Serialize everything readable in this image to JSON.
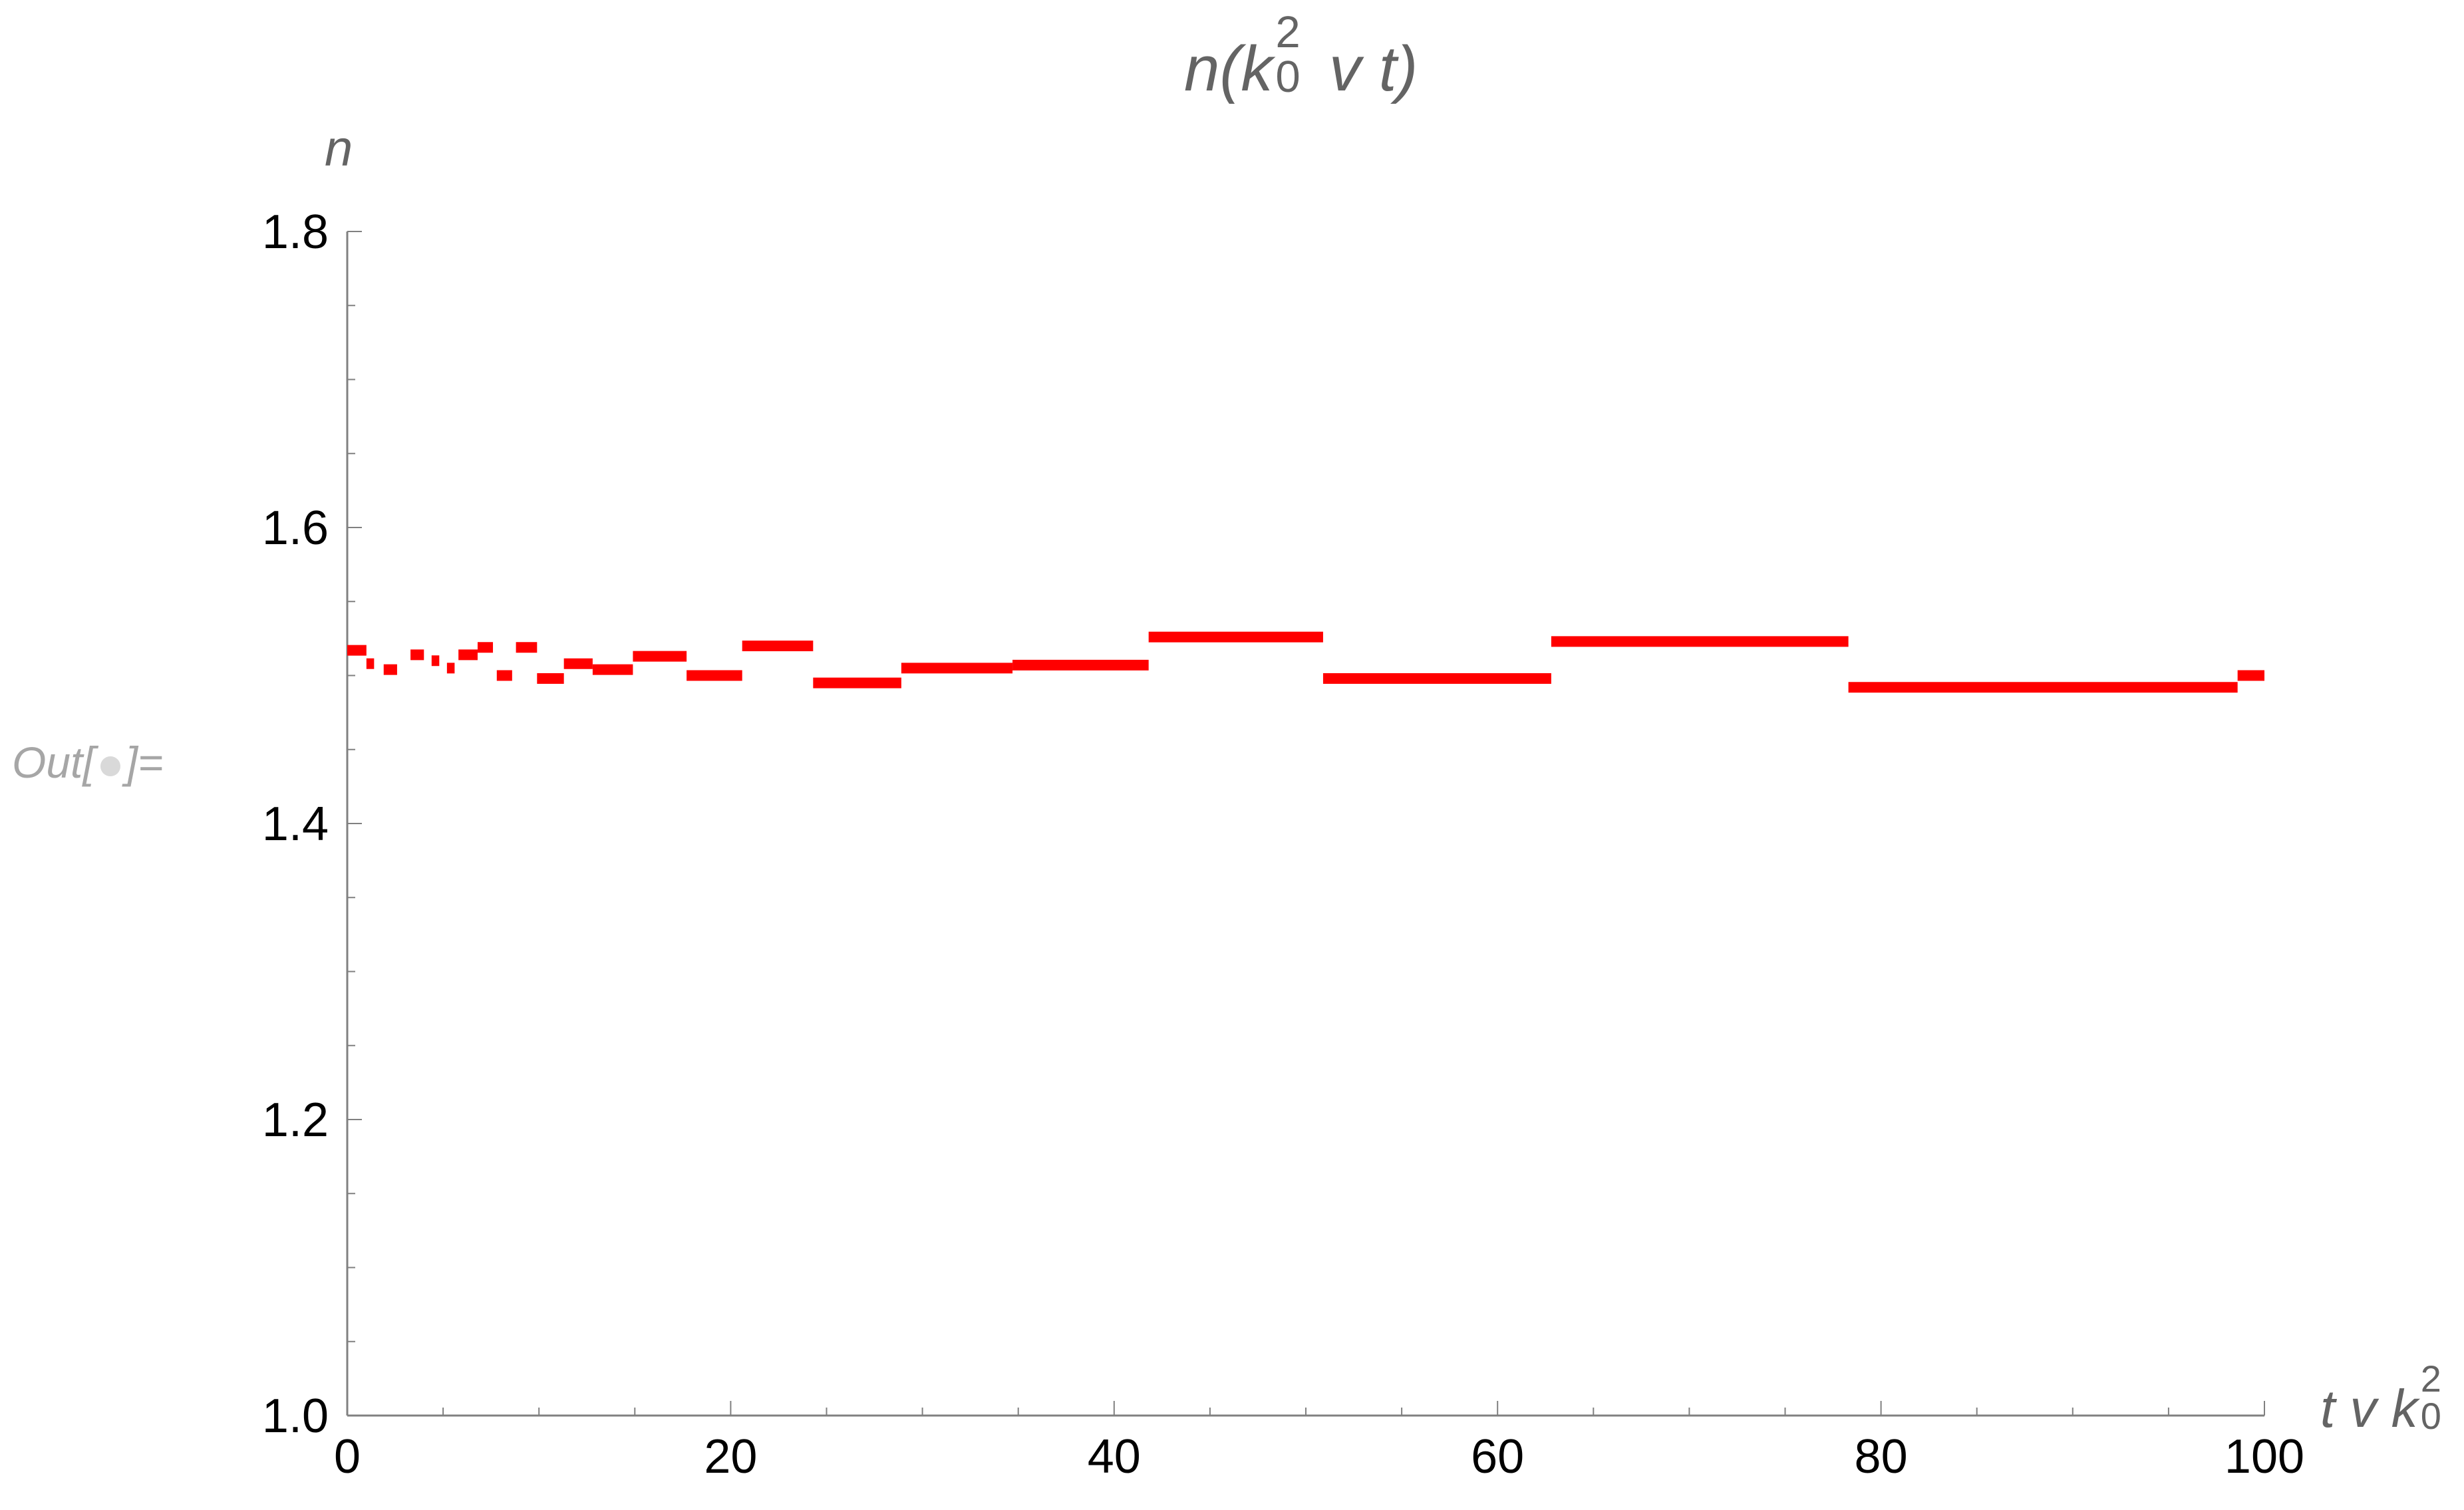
{
  "output_label": {
    "text": "Out[",
    "text_end": "]="
  },
  "title_parts": {
    "pre": "n(k",
    "sup": "2",
    "sub": "0",
    "post": " v t)"
  },
  "ylabel": "n",
  "xlabel_parts": {
    "pre": "t v k",
    "sup": "2",
    "sub": "0"
  },
  "colors": {
    "series": "#ff0000",
    "axis": "#808080",
    "text": "#000000",
    "label": "#646464"
  },
  "chart_data": {
    "type": "scatter",
    "title": "n(k0^2 v t)",
    "xlabel": "t v k0^2",
    "ylabel": "n",
    "xlim": [
      0,
      100
    ],
    "ylim": [
      1.0,
      1.8
    ],
    "x_ticks": [
      0,
      20,
      40,
      60,
      80,
      100
    ],
    "y_ticks": [
      1.0,
      1.2,
      1.4,
      1.6,
      1.8
    ],
    "x_tick_labels": [
      "0",
      "20",
      "40",
      "60",
      "80",
      "100"
    ],
    "y_tick_labels": [
      "1.0",
      "1.2",
      "1.4",
      "1.6",
      "1.8"
    ],
    "grid": false,
    "series": [
      {
        "style": "step-segments",
        "segments": [
          {
            "x0": 0.0,
            "x1": 1.0,
            "y": 1.517
          },
          {
            "x0": 1.0,
            "x1": 1.4,
            "y": 1.508
          },
          {
            "x0": 1.9,
            "x1": 2.6,
            "y": 1.504
          },
          {
            "x0": 3.3,
            "x1": 4.0,
            "y": 1.514
          },
          {
            "x0": 4.4,
            "x1": 4.8,
            "y": 1.51
          },
          {
            "x0": 5.2,
            "x1": 5.6,
            "y": 1.505
          },
          {
            "x0": 5.8,
            "x1": 6.8,
            "y": 1.514
          },
          {
            "x0": 6.8,
            "x1": 7.6,
            "y": 1.519
          },
          {
            "x0": 7.8,
            "x1": 8.6,
            "y": 1.5
          },
          {
            "x0": 8.8,
            "x1": 9.9,
            "y": 1.519
          },
          {
            "x0": 9.9,
            "x1": 11.3,
            "y": 1.498
          },
          {
            "x0": 11.3,
            "x1": 12.8,
            "y": 1.508
          },
          {
            "x0": 12.8,
            "x1": 14.9,
            "y": 1.504
          },
          {
            "x0": 14.9,
            "x1": 17.7,
            "y": 1.513
          },
          {
            "x0": 17.7,
            "x1": 20.6,
            "y": 1.5
          },
          {
            "x0": 20.6,
            "x1": 24.3,
            "y": 1.52
          },
          {
            "x0": 24.3,
            "x1": 28.9,
            "y": 1.495
          },
          {
            "x0": 28.9,
            "x1": 34.7,
            "y": 1.505
          },
          {
            "x0": 34.7,
            "x1": 41.8,
            "y": 1.507
          },
          {
            "x0": 41.8,
            "x1": 50.9,
            "y": 1.526
          },
          {
            "x0": 50.9,
            "x1": 62.8,
            "y": 1.498
          },
          {
            "x0": 62.8,
            "x1": 78.3,
            "y": 1.523
          },
          {
            "x0": 78.3,
            "x1": 98.6,
            "y": 1.492
          },
          {
            "x0": 98.6,
            "x1": 100.0,
            "y": 1.5
          }
        ]
      }
    ]
  }
}
